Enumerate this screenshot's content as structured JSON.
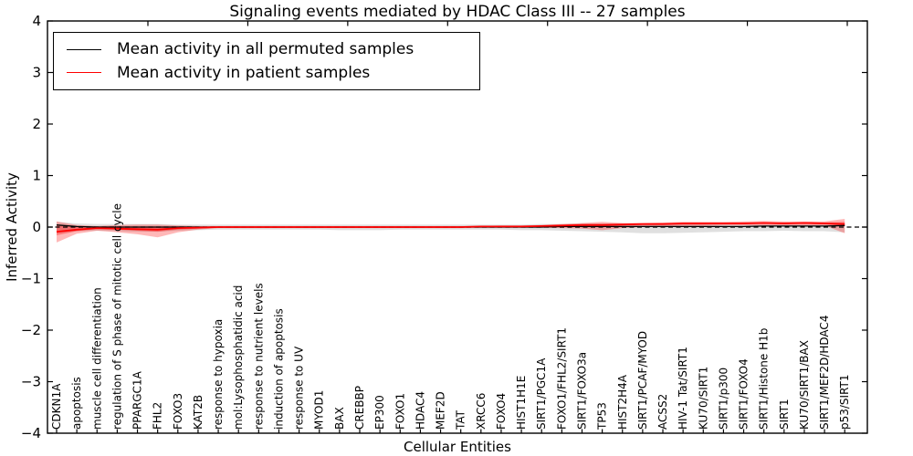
{
  "title": "Signaling events mediated by HDAC Class III -- 27 samples",
  "legend": {
    "items": [
      {
        "label": "Mean activity in all permuted samples",
        "color": "#000000"
      },
      {
        "label": "Mean activity in patient samples",
        "color": "#ff0000"
      }
    ]
  },
  "axes": {
    "y_label": "Inferred Activity",
    "x_label": "Cellular Entities",
    "y_tick_values": [
      4,
      3,
      2,
      1,
      0,
      -1,
      -2,
      -3,
      -4
    ],
    "y_tick_labels": [
      "4",
      "3",
      "2",
      "1",
      "0",
      "−1",
      "−2",
      "−3",
      "−4"
    ]
  },
  "colors": {
    "permuted_line": "#000000",
    "patient_line": "#ff0000",
    "patient_band": "#ff0000",
    "permuted_band": "#999999",
    "zero_line": "#000000",
    "frame": "#000000",
    "background": "#ffffff"
  },
  "chart_data": {
    "type": "line",
    "title": "Signaling events mediated by HDAC Class III -- 27 samples",
    "xlabel": "Cellular Entities",
    "ylabel": "Inferred Activity",
    "ylim": [
      -4,
      4
    ],
    "grid": false,
    "legend_position": "upper left",
    "zero_line_style": "dashed",
    "categories": [
      "CDKN1A",
      "apoptosis",
      "muscle cell differentiation",
      "regulation of S phase of mitotic cell cycle",
      "PPARGC1A",
      "FHL2",
      "FOXO3",
      "KAT2B",
      "response to hypoxia",
      "mol:Lysophosphatidic acid",
      "response to nutrient levels",
      "induction of apoptosis",
      "response to UV",
      "MYOD1",
      "BAX",
      "CREBBP",
      "EP300",
      "FOXO1",
      "HDAC4",
      "MEF2D",
      "TAT",
      "XRCC6",
      "FOXO4",
      "HIST1H1E",
      "SIRT1/PGC1A",
      "FOXO1/FHL2/SIRT1",
      "SIRT1/FOXO3a",
      "TP53",
      "HIST2H4A",
      "SIRT1/PCAF/MYOD",
      "ACSS2",
      "HIV-1 Tat/SIRT1",
      "KU70/SIRT1",
      "SIRT1/p300",
      "SIRT1/FOXO4",
      "SIRT1/Histone H1b",
      "SIRT1",
      "KU70/SIRT1/BAX",
      "SIRT1/MEF2D/HDAC4",
      "p53/SIRT1"
    ],
    "series": [
      {
        "name": "Mean activity in all permuted samples",
        "color": "#000000",
        "values": [
          0.04,
          0.01,
          0,
          0,
          0,
          0,
          0,
          0,
          0,
          0,
          0,
          0,
          0,
          0,
          0,
          0,
          0,
          0,
          0,
          0,
          0,
          0,
          0,
          0,
          0,
          0.01,
          0.01,
          0.01,
          0.01,
          0.01,
          0.01,
          0.01,
          0.01,
          0.01,
          0.01,
          0.02,
          0.02,
          0.02,
          0.02,
          0.03
        ]
      },
      {
        "name": "Mean activity in patient samples",
        "color": "#ff0000",
        "values": [
          -0.09,
          -0.05,
          -0.02,
          -0.03,
          -0.04,
          -0.05,
          -0.02,
          -0.01,
          0,
          0,
          0,
          0,
          0,
          0,
          0,
          0,
          0,
          0,
          0,
          0,
          0,
          0.01,
          0.01,
          0.01,
          0.02,
          0.03,
          0.04,
          0.04,
          0.05,
          0.06,
          0.06,
          0.07,
          0.07,
          0.07,
          0.07,
          0.08,
          0.07,
          0.08,
          0.07,
          0.06
        ]
      }
    ],
    "bands": [
      {
        "name": "permuted-samples-range",
        "color": "#999999",
        "opacity": 0.3,
        "hi": [
          0.1,
          0.07,
          0.06,
          0.06,
          0.06,
          0.06,
          0.05,
          0.05,
          0.05,
          0.05,
          0.05,
          0.05,
          0.05,
          0.05,
          0.05,
          0.05,
          0.05,
          0.05,
          0.05,
          0.05,
          0.05,
          0.05,
          0.05,
          0.05,
          0.06,
          0.06,
          0.07,
          0.07,
          0.07,
          0.07,
          0.06,
          0.06,
          0.06,
          0.05,
          0.05,
          0.05,
          0.05,
          0.05,
          0.05,
          0.06
        ],
        "lo": [
          -0.12,
          -0.08,
          -0.07,
          -0.08,
          -0.09,
          -0.09,
          -0.07,
          -0.06,
          -0.05,
          -0.05,
          -0.05,
          -0.05,
          -0.05,
          -0.05,
          -0.06,
          -0.06,
          -0.06,
          -0.05,
          -0.05,
          -0.05,
          -0.05,
          -0.05,
          -0.05,
          -0.06,
          -0.06,
          -0.07,
          -0.08,
          -0.09,
          -0.1,
          -0.12,
          -0.12,
          -0.11,
          -0.1,
          -0.09,
          -0.08,
          -0.08,
          -0.07,
          -0.08,
          -0.08,
          -0.1
        ]
      },
      {
        "name": "patient-samples-range-outer",
        "color": "#ff0000",
        "opacity": 0.28,
        "hi": [
          0.11,
          0.04,
          0.02,
          0.04,
          0.05,
          0.05,
          0.03,
          0.02,
          0.02,
          0.02,
          0.02,
          0.02,
          0.02,
          0.02,
          0.02,
          0.02,
          0.02,
          0.02,
          0.02,
          0.02,
          0.02,
          0.02,
          0.03,
          0.03,
          0.04,
          0.06,
          0.08,
          0.1,
          0.08,
          0.08,
          0.09,
          0.1,
          0.1,
          0.1,
          0.11,
          0.12,
          0.11,
          0.11,
          0.11,
          0.16
        ],
        "lo": [
          -0.3,
          -0.13,
          -0.07,
          -0.1,
          -0.14,
          -0.2,
          -0.1,
          -0.05,
          -0.02,
          -0.02,
          -0.02,
          -0.02,
          -0.02,
          -0.02,
          -0.02,
          -0.02,
          -0.02,
          -0.02,
          -0.02,
          -0.02,
          -0.02,
          -0.01,
          -0.01,
          -0.01,
          -0.01,
          -0.02,
          -0.03,
          -0.06,
          -0.02,
          0,
          0.01,
          0.02,
          0.02,
          0.03,
          0.03,
          0.03,
          0.03,
          0.03,
          0.03,
          -0.12
        ]
      },
      {
        "name": "patient-samples-range-inner",
        "color": "#ff0000",
        "opacity": 0.32,
        "hi": [
          0.03,
          0.01,
          0.01,
          0.01,
          0.01,
          0.01,
          0.01,
          0.01,
          0.01,
          0.01,
          0.01,
          0.01,
          0.01,
          0.01,
          0.01,
          0.01,
          0.01,
          0.01,
          0.01,
          0.01,
          0.01,
          0.02,
          0.02,
          0.02,
          0.03,
          0.04,
          0.05,
          0.06,
          0.06,
          0.07,
          0.07,
          0.08,
          0.08,
          0.08,
          0.09,
          0.09,
          0.09,
          0.09,
          0.09,
          0.1
        ],
        "lo": [
          -0.16,
          -0.08,
          -0.04,
          -0.05,
          -0.07,
          -0.09,
          -0.05,
          -0.03,
          -0.01,
          -0.01,
          -0.01,
          -0.01,
          -0.01,
          -0.01,
          -0.01,
          -0.01,
          -0.01,
          -0.01,
          -0.01,
          -0.01,
          -0.01,
          0,
          0,
          0,
          0.01,
          0.01,
          0.02,
          0.02,
          0.03,
          0.04,
          0.04,
          0.05,
          0.05,
          0.06,
          0.06,
          0.06,
          0.06,
          0.06,
          0.06,
          0.01
        ]
      }
    ]
  }
}
